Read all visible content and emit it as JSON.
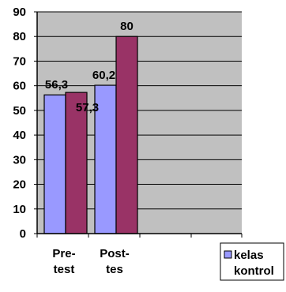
{
  "chart_data": {
    "type": "bar",
    "categories": [
      "Pre-test",
      "Post-tes"
    ],
    "category_label_lines": [
      [
        "Pre-",
        "test"
      ],
      [
        "Post-",
        "tes"
      ]
    ],
    "series": [
      {
        "name": "kelas kontrol",
        "values": [
          56.3,
          60.2
        ],
        "labels": [
          "56,3",
          "60,2"
        ]
      },
      {
        "name": "",
        "values": [
          57.3,
          80
        ],
        "labels": [
          "57,3",
          "80"
        ]
      }
    ],
    "legend_lines": [
      "kelas",
      "kontrol"
    ],
    "legend_position": "bottom-right",
    "ylim": [
      0,
      90
    ],
    "yticks": [
      0,
      10,
      20,
      30,
      40,
      50,
      60,
      70,
      80,
      90
    ],
    "grid": true,
    "xlabel": "",
    "ylabel": "",
    "title": "",
    "colors": {
      "plot_background": "#c0c0c0",
      "series_0": "#9999ff",
      "series_1": "#993366",
      "gridline": "#000000",
      "axis": "#000000"
    }
  }
}
